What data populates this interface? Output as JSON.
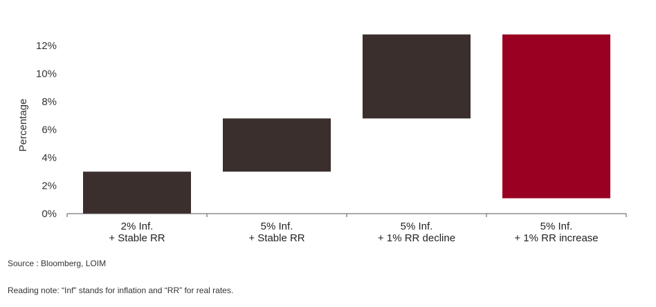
{
  "chart_data": {
    "type": "bar",
    "subtype": "floating-range",
    "categories": [
      [
        "2% Inf.",
        "+ Stable RR"
      ],
      [
        "5% Inf.",
        "+ Stable RR"
      ],
      [
        "5% Inf.",
        "+ 1% RR decline"
      ],
      [
        "5% Inf.",
        "+ 1% RR increase"
      ]
    ],
    "ranges": [
      [
        0,
        3
      ],
      [
        3,
        6.8
      ],
      [
        6.8,
        12.8
      ],
      [
        1.1,
        12.8
      ]
    ],
    "bar_colors": [
      "#3a2f2d",
      "#3a2f2d",
      "#3a2f2d",
      "#990022"
    ],
    "ylabel": "Percentage",
    "ylim": [
      0,
      13
    ],
    "yticks": [
      0,
      2,
      4,
      6,
      8,
      10,
      12
    ],
    "ytick_labels": [
      "0%",
      "2%",
      "4%",
      "6%",
      "8%",
      "10%",
      "12%"
    ],
    "grid": false,
    "legend": "none"
  },
  "notes": {
    "source": "Source : Bloomberg, LOIM",
    "reading": "Reading note: “Inf” stands for inflation and “RR” for real rates."
  }
}
